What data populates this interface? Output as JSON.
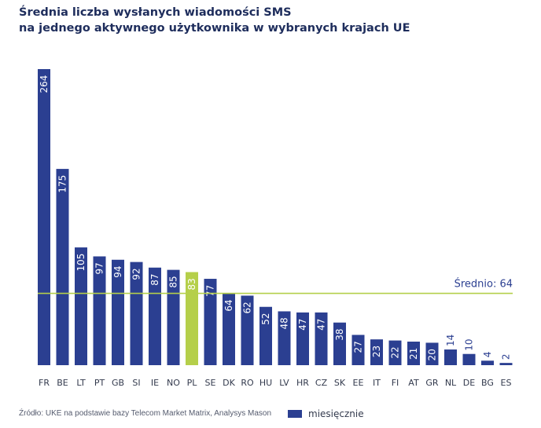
{
  "title_line1": "Średnia liczba wysłanych wiadomości SMS",
  "title_line2": "na jednego aktywnego użytkownika w wybranych krajach UE",
  "source": "Źródło: UKE na podstawie bazy Telecom Market Matrix, Analysys Mason",
  "legend_label": "miesięcznie",
  "colors": {
    "bar": "#2b3f91",
    "highlight": "#b5cf4a",
    "average_line": "#b5cf4a",
    "title": "#1e2d5c"
  },
  "chart_data": {
    "type": "bar",
    "categories": [
      "FR",
      "BE",
      "LT",
      "PT",
      "GB",
      "SI",
      "IE",
      "NO",
      "PL",
      "SE",
      "DK",
      "RO",
      "HU",
      "LV",
      "HR",
      "CZ",
      "SK",
      "EE",
      "IT",
      "FI",
      "AT",
      "GR",
      "NL",
      "DE",
      "BG",
      "ES"
    ],
    "values": [
      264,
      175,
      105,
      97,
      94,
      92,
      87,
      85,
      83,
      77,
      64,
      62,
      52,
      48,
      47,
      47,
      38,
      27,
      23,
      22,
      21,
      20,
      14,
      10,
      4,
      2
    ],
    "highlight_category": "PL",
    "average": {
      "value": 64,
      "label": "Średnio: 64"
    },
    "series": [
      {
        "name": "miesięcznie"
      }
    ],
    "data_labels": "rotated-inside",
    "legend_position": "bottom",
    "grid": false,
    "ylim": [
      0,
      264
    ]
  }
}
